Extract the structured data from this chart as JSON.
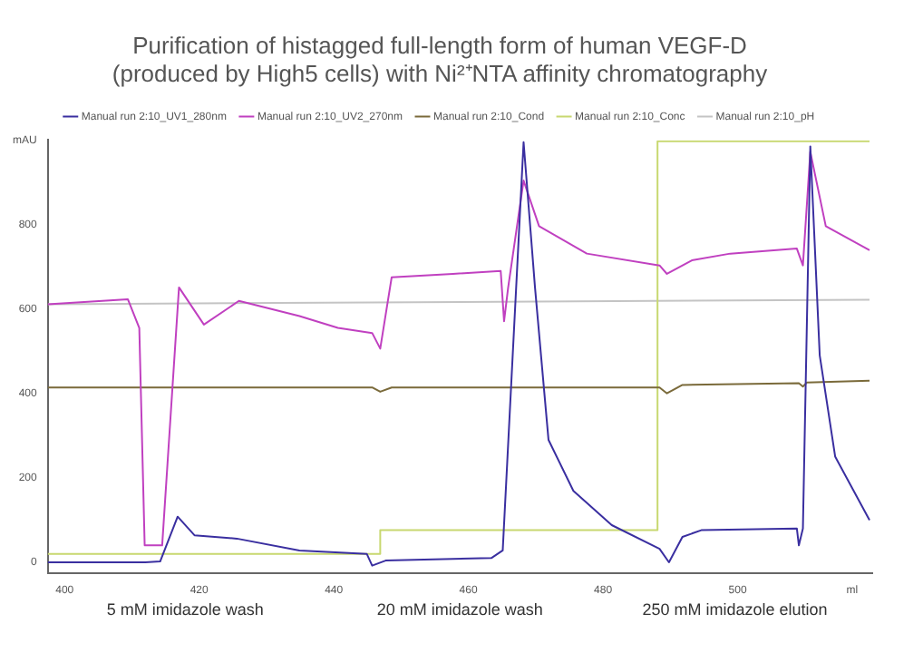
{
  "chart_data": {
    "type": "line",
    "title": [
      "Purification of histagged full-length form of human VEGF-D",
      "(produced by High5 cells) with Ni²⁺NTA affinity chromatography"
    ],
    "xlim": [
      397.5,
      520
    ],
    "xticks": [
      400,
      420,
      440,
      460,
      480,
      500,
      {
        "value": 517,
        "label": "ml"
      }
    ],
    "ylim": [
      -25,
      1000
    ],
    "yticks": [
      0,
      200,
      400,
      600,
      800,
      {
        "value": 1000,
        "label": "mAU"
      }
    ],
    "grid": false,
    "legend": "top",
    "marker": "none",
    "line_style": "solid",
    "annotations": [
      "5 mM imidazole wash",
      "20 mM imidazole wash",
      "250 mM imidazole elution"
    ],
    "series": [
      {
        "name": "Manual run 2:10_UV1_280nm",
        "color": "#3a2fa0",
        "x": [
          397.5,
          412,
          414.2,
          416.8,
          419.3,
          425.6,
          434.9,
          444.9,
          445.7,
          447.7,
          457.7,
          463.4,
          465.1,
          468.2,
          469.9,
          471.9,
          475.6,
          481.3,
          488.4,
          489.8,
          491.8,
          494.6,
          508.8,
          509.1,
          509.7,
          510.8,
          512.2,
          514.5,
          519.6
        ],
        "values": [
          0,
          0,
          2,
          108,
          64,
          56,
          28,
          20,
          -8,
          4,
          8,
          10,
          28,
          995,
          650,
          290,
          169,
          88,
          32,
          0,
          60,
          76,
          80,
          40,
          80,
          985,
          490,
          250,
          100
        ]
      },
      {
        "name": "Manual run 2:10_UV2_270nm",
        "color": "#c040c0",
        "x": [
          397.5,
          409.4,
          411.1,
          411.9,
          414.5,
          417,
          420.7,
          425.9,
          434.9,
          440.6,
          445.7,
          446.9,
          448.6,
          457.7,
          464.8,
          465.3,
          465.9,
          468.2,
          470.5,
          477.6,
          488.4,
          489.5,
          493.2,
          498.9,
          508.8,
          509.7,
          510.8,
          513.1,
          519.6
        ],
        "values": [
          611,
          623,
          555,
          40,
          40,
          651,
          563,
          619,
          583,
          555,
          543,
          506,
          675,
          683,
          690,
          571,
          650,
          904,
          796,
          731,
          703,
          683,
          715,
          731,
          743,
          703,
          972,
          796,
          739
        ]
      },
      {
        "name": "Manual run 2:10_Cond",
        "color": "#7a6a3a",
        "x": [
          397.5,
          445.7,
          446.9,
          448.6,
          488.4,
          489.5,
          491.8,
          509.1,
          509.7,
          510.3,
          519.6
        ],
        "values": [
          414,
          414,
          404,
          414,
          414,
          400,
          420,
          424,
          416,
          426,
          430
        ]
      },
      {
        "name": "Manual run 2:10_Conc",
        "color": "#c8d870",
        "x": [
          397.5,
          446.9,
          446.9,
          488.1,
          488.1,
          519.6
        ],
        "values": [
          20,
          20,
          76,
          76,
          997,
          997
        ]
      },
      {
        "name": "Manual run 2:10_pH",
        "color": "#c4c4c4",
        "x": [
          397.5,
          519.6
        ],
        "values": [
          611,
          622
        ]
      }
    ]
  }
}
